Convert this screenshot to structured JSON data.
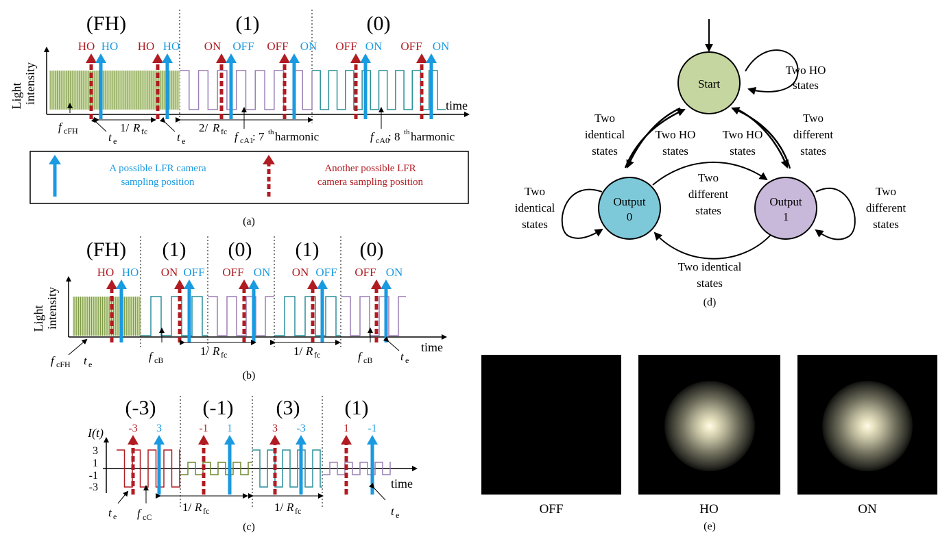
{
  "panel_a": {
    "caption": "(a)",
    "headers": [
      "(FH)",
      "(1)",
      "(0)"
    ],
    "ylabel_line1": "Light",
    "ylabel_line2": "intensity",
    "xlabel": "time",
    "markers": [
      {
        "text": "HO",
        "color": "red"
      },
      {
        "text": "HO",
        "color": "blue"
      },
      {
        "text": "HO",
        "color": "red"
      },
      {
        "text": "HO",
        "color": "blue"
      },
      {
        "text": "ON",
        "color": "red"
      },
      {
        "text": "OFF",
        "color": "blue"
      },
      {
        "text": "OFF",
        "color": "red"
      },
      {
        "text": "ON",
        "color": "blue"
      },
      {
        "text": "OFF",
        "color": "red"
      },
      {
        "text": "ON",
        "color": "blue"
      },
      {
        "text": "OFF",
        "color": "red"
      },
      {
        "text": "ON",
        "color": "blue"
      }
    ],
    "f_cFH": "f",
    "f_cFH_sub": "cFH",
    "one_over_R": "1/",
    "R": "R",
    "R_sub": "fc",
    "two_over_R": "2/",
    "te": "t",
    "te_sub": "e",
    "f_cA1_sub": "cA1",
    "f_cA1_text": ": 7",
    "th": "th",
    "harmonic": " harmonic",
    "f_cA0_sub": "cA0",
    "f_cA0_text": ": 8"
  },
  "legend": {
    "blue_line1": "A possible LFR camera",
    "blue_line2": "sampling position",
    "red_line1": "Another possible LFR",
    "red_line2": "camera sampling position"
  },
  "panel_b": {
    "caption": "(b)",
    "headers": [
      "(FH)",
      "(1)",
      "(0)",
      "(1)",
      "(0)"
    ],
    "markers": [
      {
        "text": "HO",
        "color": "red"
      },
      {
        "text": "HO",
        "color": "blue"
      },
      {
        "text": "ON",
        "color": "red"
      },
      {
        "text": "OFF",
        "color": "blue"
      },
      {
        "text": "OFF",
        "color": "red"
      },
      {
        "text": "ON",
        "color": "blue"
      },
      {
        "text": "ON",
        "color": "red"
      },
      {
        "text": "OFF",
        "color": "blue"
      },
      {
        "text": "OFF",
        "color": "red"
      },
      {
        "text": "ON",
        "color": "blue"
      }
    ],
    "f_cB_sub": "cB"
  },
  "panel_c": {
    "caption": "(c)",
    "headers": [
      "(-3)",
      "(-1)",
      "(3)",
      "(1)"
    ],
    "ylabel": "I(t)",
    "ticks": [
      "3",
      "1",
      "-1",
      "-3"
    ],
    "markers": [
      {
        "text": "-3",
        "color": "red"
      },
      {
        "text": "3",
        "color": "blue"
      },
      {
        "text": "-1",
        "color": "red"
      },
      {
        "text": "1",
        "color": "blue"
      },
      {
        "text": "3",
        "color": "red"
      },
      {
        "text": "-3",
        "color": "blue"
      },
      {
        "text": "1",
        "color": "red"
      },
      {
        "text": "-1",
        "color": "blue"
      }
    ],
    "f_cC_sub": "cC"
  },
  "panel_d": {
    "caption": "(d)",
    "nodes": {
      "start": "Start",
      "out0_line1": "Output",
      "out0_line2": "0",
      "out1_line1": "Output",
      "out1_line2": "1"
    },
    "labels": {
      "start_loop_1": "Two HO",
      "start_loop_2": "states",
      "left_outer_1": "Two",
      "left_outer_2": "identical",
      "left_outer_3": "states",
      "right_outer_1": "Two",
      "right_outer_2": "different",
      "right_outer_3": "states",
      "inner_left_1": "Two HO",
      "inner_left_2": "states",
      "inner_right_1": "Two HO",
      "inner_right_2": "states",
      "middle_1": "Two",
      "middle_2": "different",
      "middle_3": "states",
      "out0_loop_1": "Two",
      "out0_loop_2": "identical",
      "out0_loop_3": "states",
      "out1_loop_1": "Two",
      "out1_loop_2": "different",
      "out1_loop_3": "states",
      "bottom_1": "Two identical",
      "bottom_2": "states"
    },
    "colors": {
      "start": "#c5d6a0",
      "out0": "#7ec9d9",
      "out1": "#c8b9da"
    }
  },
  "panel_e": {
    "caption": "(e)",
    "images": [
      "OFF",
      "HO",
      "ON"
    ]
  },
  "colors": {
    "red": "#b01c22",
    "blue": "#1a9ae0",
    "fh_fill": "#c9d9a5",
    "olive": "#6c8a2e",
    "purple": "#9b7fb6",
    "teal": "#2a8f9a"
  }
}
